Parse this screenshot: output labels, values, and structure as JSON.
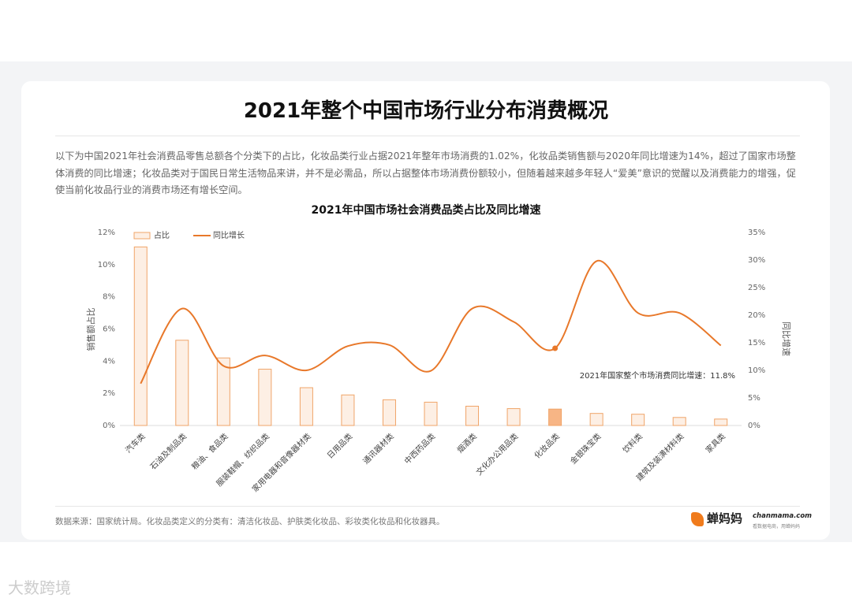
{
  "title": "2021年整个中国市场行业分布消费概况",
  "paragraph": "以下为中国2021年社会消费品零售总额各个分类下的占比，化妆品类行业占据2021年整年市场消费的1.02%，化妆品类销售额与2020年同比增速为14%，超过了国家市场整体消费的同比增速；化妆品类对于国民日常生活物品来讲，并不是必需品，所以占据整体市场消费份额较小，但随着越来越多年轻人“爱美”意识的觉醒以及消费能力的增强，促使当前化妆品行业的消费市场还有增长空间。",
  "chart_data": {
    "type": "bar",
    "title": "2021年中国市场社会消费品类占比及同比增速",
    "categories": [
      "汽车类",
      "石油及制品类",
      "粮油、食品类",
      "服装鞋帽、纺织品类",
      "家用电器和音像器材类",
      "日用品类",
      "通讯器材类",
      "中西药品类",
      "烟酒类",
      "文化办公用品类",
      "化妆品类",
      "金银珠宝类",
      "饮料类",
      "建筑及装潢材料类",
      "家具类"
    ],
    "series": [
      {
        "name": "占比",
        "type": "bar",
        "color": "#f0a468",
        "fill": "#fdefe4",
        "values": [
          11.1,
          5.3,
          4.2,
          3.5,
          2.35,
          1.9,
          1.6,
          1.45,
          1.2,
          1.05,
          1.02,
          0.75,
          0.7,
          0.5,
          0.4
        ]
      },
      {
        "name": "同比增长",
        "type": "line",
        "axis": "y2",
        "color": "#e8782a",
        "values": [
          7.6,
          21.2,
          10.8,
          12.7,
          10.0,
          14.4,
          14.6,
          9.9,
          21.2,
          18.8,
          14.0,
          29.8,
          20.4,
          20.4,
          14.5
        ]
      }
    ],
    "highlight_category": "化妆品类",
    "highlight_fill": "#f7b585",
    "ylabel": "销售额占比",
    "y2label": "同比增速",
    "ylim": [
      0,
      12
    ],
    "yticks": [
      {
        "value": 0,
        "label": "0%"
      },
      {
        "value": 2,
        "label": "2%"
      },
      {
        "value": 4,
        "label": "4%"
      },
      {
        "value": 6,
        "label": "6%"
      },
      {
        "value": 8,
        "label": "8%"
      },
      {
        "value": 10,
        "label": "10%"
      },
      {
        "value": 12,
        "label": "12%"
      }
    ],
    "y2lim": [
      0,
      35
    ],
    "y2ticks": [
      {
        "value": 0,
        "label": "0%"
      },
      {
        "value": 5,
        "label": "5%"
      },
      {
        "value": 10,
        "label": "10%"
      },
      {
        "value": 15,
        "label": "15%"
      },
      {
        "value": 20,
        "label": "20%"
      },
      {
        "value": 25,
        "label": "25%"
      },
      {
        "value": 30,
        "label": "30%"
      },
      {
        "value": 35,
        "label": "35%"
      }
    ],
    "annotation": "2021年国家整个市场消费同比增速：11.8%",
    "legend": "top-left"
  },
  "footer": "数据来源：国家统计局。化妆品类定义的分类有：清洁化妆品、护肤类化妆品、彩妆类化妆品和化妆器具。",
  "logo": {
    "name": "蝉妈妈",
    "site": "chanmama.com",
    "slogan": "看数据电商，用蝉妈妈"
  },
  "watermark": "大数跨境"
}
